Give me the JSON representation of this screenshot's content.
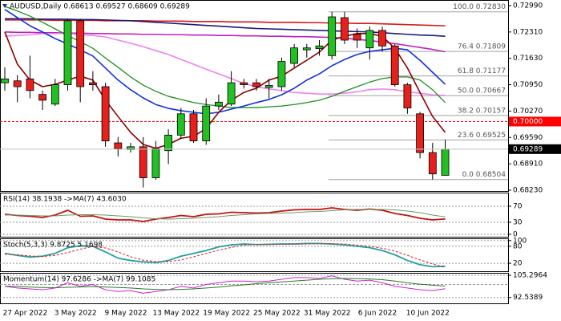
{
  "chart_data": [
    {
      "type": "candlestick",
      "title": "AUDUSD,Daily 0.68613 0.69527 0.68609 0.69289",
      "categories": [
        null,
        null,
        "27 Apr 2022",
        null,
        null,
        null,
        "3 May 2022",
        null,
        null,
        null,
        "9 May 2022",
        null,
        null,
        null,
        "13 May 2022",
        null,
        null,
        null,
        "19 May 2022",
        null,
        null,
        null,
        "25 May 2022",
        null,
        null,
        null,
        "31 May 2022",
        null,
        null,
        null,
        "6 Jun 2022",
        null,
        null,
        null,
        "10 Jun 2022",
        null
      ],
      "open": [
        0.71,
        0.7105,
        0.711,
        0.707,
        0.7045,
        0.7095,
        0.726,
        0.71,
        0.709,
        0.6945,
        0.6928,
        0.6935,
        0.6855,
        0.6925,
        0.6965,
        0.702,
        0.695,
        0.704,
        0.7045,
        0.71,
        0.71,
        0.7088,
        0.709,
        0.715,
        0.7185,
        0.7188,
        0.717,
        0.7268,
        0.7225,
        0.719,
        0.7235,
        0.7195,
        0.7095,
        0.702,
        0.692,
        0.68613
      ],
      "high": [
        0.714,
        0.712,
        0.717,
        0.708,
        0.711,
        0.7265,
        0.7265,
        0.713,
        0.71,
        0.696,
        0.6945,
        0.696,
        0.695,
        0.698,
        0.7035,
        0.703,
        0.706,
        0.707,
        0.713,
        0.711,
        0.711,
        0.711,
        0.7165,
        0.72,
        0.72,
        0.721,
        0.7283,
        0.7283,
        0.724,
        0.7245,
        0.7245,
        0.72,
        0.71,
        0.7025,
        0.6945,
        0.69527
      ],
      "low": [
        0.708,
        0.705,
        0.706,
        0.703,
        0.704,
        0.708,
        0.705,
        0.708,
        0.6935,
        0.691,
        0.692,
        0.683,
        0.685,
        0.689,
        0.6955,
        0.6945,
        0.694,
        0.703,
        0.704,
        0.7085,
        0.708,
        0.706,
        0.708,
        0.714,
        0.7165,
        0.717,
        0.716,
        0.72,
        0.719,
        0.716,
        0.718,
        0.709,
        0.702,
        0.6905,
        0.68504,
        0.68609
      ],
      "close": [
        0.711,
        0.709,
        0.708,
        0.7055,
        0.7095,
        0.726,
        0.709,
        0.7095,
        0.695,
        0.693,
        0.6935,
        0.6855,
        0.693,
        0.6965,
        0.702,
        0.695,
        0.704,
        0.705,
        0.71,
        0.7095,
        0.709,
        0.7093,
        0.7155,
        0.719,
        0.719,
        0.7195,
        0.727,
        0.721,
        0.721,
        0.7235,
        0.7195,
        0.7095,
        0.7035,
        0.692,
        0.6865,
        0.69289
      ],
      "up_color": "#22c022",
      "down_color": "#e8201c",
      "series": [
        {
          "color": "#d81818",
          "width": 1.6,
          "values": [
            0.7262,
            0.7262,
            0.7262,
            0.7262,
            0.7261,
            0.7261,
            0.7261,
            0.7261,
            0.726,
            0.726,
            0.726,
            0.726,
            0.7259,
            0.7259,
            0.7259,
            0.7258,
            0.7258,
            0.7258,
            0.7257,
            0.7257,
            0.7257,
            0.7256,
            0.7256,
            0.7256,
            0.7255,
            0.7255,
            0.7254,
            0.7254,
            0.7253,
            0.7253,
            0.7252,
            0.7251,
            0.725,
            0.7249,
            0.7248,
            0.7247
          ]
        },
        {
          "color": "#1a1a7a",
          "width": 1.6,
          "values": [
            0.7265,
            0.7265,
            0.7265,
            0.7264,
            0.7264,
            0.7264,
            0.7263,
            0.7263,
            0.7262,
            0.7261,
            0.726,
            0.7258,
            0.7256,
            0.7254,
            0.7252,
            0.725,
            0.7248,
            0.7246,
            0.7244,
            0.7242,
            0.724,
            0.7239,
            0.7238,
            0.7237,
            0.7236,
            0.7235,
            0.7234,
            0.7233,
            0.7232,
            0.7231,
            0.7229,
            0.7227,
            0.7225,
            0.7223,
            0.7222,
            0.722
          ]
        },
        {
          "color": "#c020c0",
          "width": 1.6,
          "values": [
            0.7231,
            0.723,
            0.723,
            0.7229,
            0.7229,
            0.7228,
            0.7228,
            0.7227,
            0.7227,
            0.7226,
            0.7226,
            0.7225,
            0.7225,
            0.7224,
            0.7224,
            0.7223,
            0.7223,
            0.7222,
            0.7222,
            0.7221,
            0.7221,
            0.722,
            0.722,
            0.7219,
            0.7219,
            0.7218,
            0.7217,
            0.7215,
            0.7212,
            0.7209,
            0.7205,
            0.7201,
            0.7196,
            0.7191,
            0.7186,
            0.718
          ]
        },
        {
          "color": "#ee82ee",
          "width": 1.6,
          "values": [
            0.722,
            0.7222,
            0.7224,
            0.7227,
            0.7227,
            0.7227,
            0.7224,
            0.7222,
            0.7218,
            0.721,
            0.7202,
            0.7193,
            0.7183,
            0.7173,
            0.716,
            0.7148,
            0.7135,
            0.7123,
            0.7111,
            0.7098,
            0.709,
            0.7084,
            0.708,
            0.7075,
            0.7073,
            0.7071,
            0.7071,
            0.7073,
            0.7077,
            0.7082,
            0.7084,
            0.7082,
            0.7077,
            0.7073,
            0.7069,
            0.7067
          ]
        },
        {
          "color": "#1f8f1f",
          "width": 1.3,
          "values": [
            0.7297,
            0.7285,
            0.7272,
            0.7256,
            0.7239,
            0.7222,
            0.7206,
            0.7189,
            0.7164,
            0.714,
            0.7115,
            0.7094,
            0.7078,
            0.7065,
            0.7057,
            0.7049,
            0.7044,
            0.704,
            0.7036,
            0.7036,
            0.7036,
            0.7038,
            0.704,
            0.7044,
            0.7049,
            0.7055,
            0.7065,
            0.7078,
            0.709,
            0.7102,
            0.7111,
            0.7115,
            0.7115,
            0.7107,
            0.7082,
            0.7049
          ]
        },
        {
          "color": "#1030e0",
          "width": 1.6,
          "values": [
            0.7289,
            0.7268,
            0.7247,
            0.7231,
            0.7214,
            0.72,
            0.7185,
            0.7169,
            0.7138,
            0.7107,
            0.7082,
            0.7061,
            0.7044,
            0.7034,
            0.7028,
            0.7024,
            0.702,
            0.7024,
            0.7032,
            0.704,
            0.7049,
            0.7057,
            0.7069,
            0.7086,
            0.7107,
            0.7123,
            0.7144,
            0.716,
            0.7173,
            0.7181,
            0.7185,
            0.7189,
            0.7185,
            0.7158,
            0.7127,
            0.7096
          ]
        },
        {
          "color": "#8b0000",
          "width": 1.6,
          "values": [
            0.7231,
            0.7148,
            0.7107,
            0.709,
            0.7096,
            0.7107,
            0.7117,
            0.7107,
            0.7055,
            0.7013,
            0.6972,
            0.6941,
            0.6931,
            0.6941,
            0.6957,
            0.6962,
            0.6982,
            0.7024,
            0.7055,
            0.7075,
            0.7086,
            0.7107,
            0.7117,
            0.7138,
            0.7158,
            0.7179,
            0.721,
            0.722,
            0.7227,
            0.7227,
            0.722,
            0.7189,
            0.7138,
            0.7075,
            0.7013,
            0.6972
          ]
        }
      ],
      "ylim": [
        0.68209,
        0.73135
      ],
      "yticks": [
        {
          "value": 0.7299,
          "label": "0.72990"
        },
        {
          "value": 0.7231,
          "label": "0.72310"
        },
        {
          "value": 0.7163,
          "label": "0.71630"
        },
        {
          "value": 0.7095,
          "label": "0.70950"
        },
        {
          "value": 0.7027,
          "label": "0.70270"
        },
        {
          "value": 0.6959,
          "label": "0.69590"
        },
        {
          "value": 0.6891,
          "label": "0.68910"
        },
        {
          "value": 0.6823,
          "label": "0.68230"
        }
      ],
      "fib_levels": [
        {
          "value": 0.7283,
          "label": "100.0 0.72830"
        },
        {
          "value": 0.71809,
          "label": "76.4 0.71809"
        },
        {
          "value": 0.71177,
          "label": "61.8 0.71177"
        },
        {
          "value": 0.70667,
          "label": "50.0 0.70667"
        },
        {
          "value": 0.70157,
          "label": "38.2 0.70157"
        },
        {
          "value": 0.69525,
          "label": "23.6 0.69525"
        },
        {
          "value": 0.68504,
          "label": "0.0 0.68504"
        }
      ],
      "levels": [
        {
          "value": 0.7,
          "label": "0.70000",
          "color": "#ff0000"
        }
      ],
      "last": {
        "value": 0.69289,
        "label": "0.69289",
        "color": "#000000"
      }
    },
    {
      "type": "line",
      "title": "RSI(14) 38.1938 ->MA(7) 43.6030",
      "ylim": [
        -6,
        104
      ],
      "yticks": [
        70,
        30,
        0
      ],
      "series": [
        {
          "color": "#c81010",
          "width": 1.8,
          "values": [
            50,
            47,
            45,
            42,
            48,
            60,
            45,
            46,
            38,
            36,
            36,
            32,
            38,
            42,
            47,
            44,
            50,
            51,
            55,
            54,
            53,
            54,
            58,
            61,
            62,
            62,
            66,
            62,
            60,
            63,
            60,
            52,
            47,
            40,
            36,
            38.1938
          ]
        },
        {
          "color": "#6a9a6a",
          "width": 1,
          "values": [
            48,
            48,
            47,
            46,
            46,
            48,
            49,
            49,
            48,
            46,
            44,
            41,
            39,
            38,
            39,
            40,
            42,
            44,
            47,
            49,
            51,
            52,
            53,
            54,
            56,
            57,
            59,
            61,
            62,
            62,
            62,
            61,
            58,
            54,
            48,
            43.603
          ]
        }
      ]
    },
    {
      "type": "line",
      "title": "Stoch(5,3,3) 9.8725 5.1698",
      "ylim": [
        -8,
        108
      ],
      "yticks": [
        100,
        80,
        20
      ],
      "series": [
        {
          "color": "#20a0a0",
          "width": 1.8,
          "values": [
            55,
            48,
            42,
            45,
            55,
            75,
            82,
            80,
            60,
            38,
            30,
            25,
            22,
            30,
            45,
            55,
            65,
            78,
            85,
            88,
            86,
            87,
            88,
            88,
            90,
            90,
            88,
            85,
            80,
            75,
            65,
            50,
            30,
            15,
            8,
            9.8725
          ]
        },
        {
          "color": "#e02020",
          "width": 1,
          "dash": true,
          "values": [
            52,
            50,
            46,
            44,
            48,
            58,
            70,
            79,
            74,
            60,
            43,
            31,
            26,
            26,
            32,
            43,
            55,
            66,
            76,
            84,
            86,
            87,
            87,
            88,
            88,
            89,
            89,
            88,
            84,
            80,
            73,
            63,
            48,
            32,
            18,
            5.1698
          ]
        }
      ]
    },
    {
      "type": "line",
      "title": "Momentum(14) 97.6286 ->MA(7) 99.1085",
      "ylim": [
        89.2,
        106.7
      ],
      "yticks": [
        105.2964,
        92.5389
      ],
      "levels": [
        100
      ],
      "series": [
        {
          "color": "#d020d0",
          "width": 1,
          "values": [
            99,
            98,
            97.5,
            97,
            98,
            101,
            99,
            100,
            97,
            96,
            96.5,
            95,
            96,
            97,
            99,
            98,
            100,
            101,
            102,
            102,
            101.5,
            102,
            103,
            104,
            104,
            103.5,
            105,
            103,
            102,
            102.5,
            101,
            99,
            98,
            97,
            96.5,
            97.6286
          ]
        },
        {
          "color": "#2a7a2a",
          "width": 1,
          "values": [
            99,
            99,
            98.5,
            98.3,
            98.2,
            98.4,
            98.6,
            98.8,
            98.6,
            98.3,
            98,
            97.5,
            97.2,
            97,
            97.2,
            97.5,
            98,
            98.5,
            99.2,
            99.8,
            100.5,
            101,
            101.5,
            102,
            102.5,
            103,
            103.3,
            103.5,
            103.4,
            103.2,
            102.8,
            102,
            101,
            100.2,
            99.6,
            99.1085
          ]
        }
      ]
    }
  ]
}
